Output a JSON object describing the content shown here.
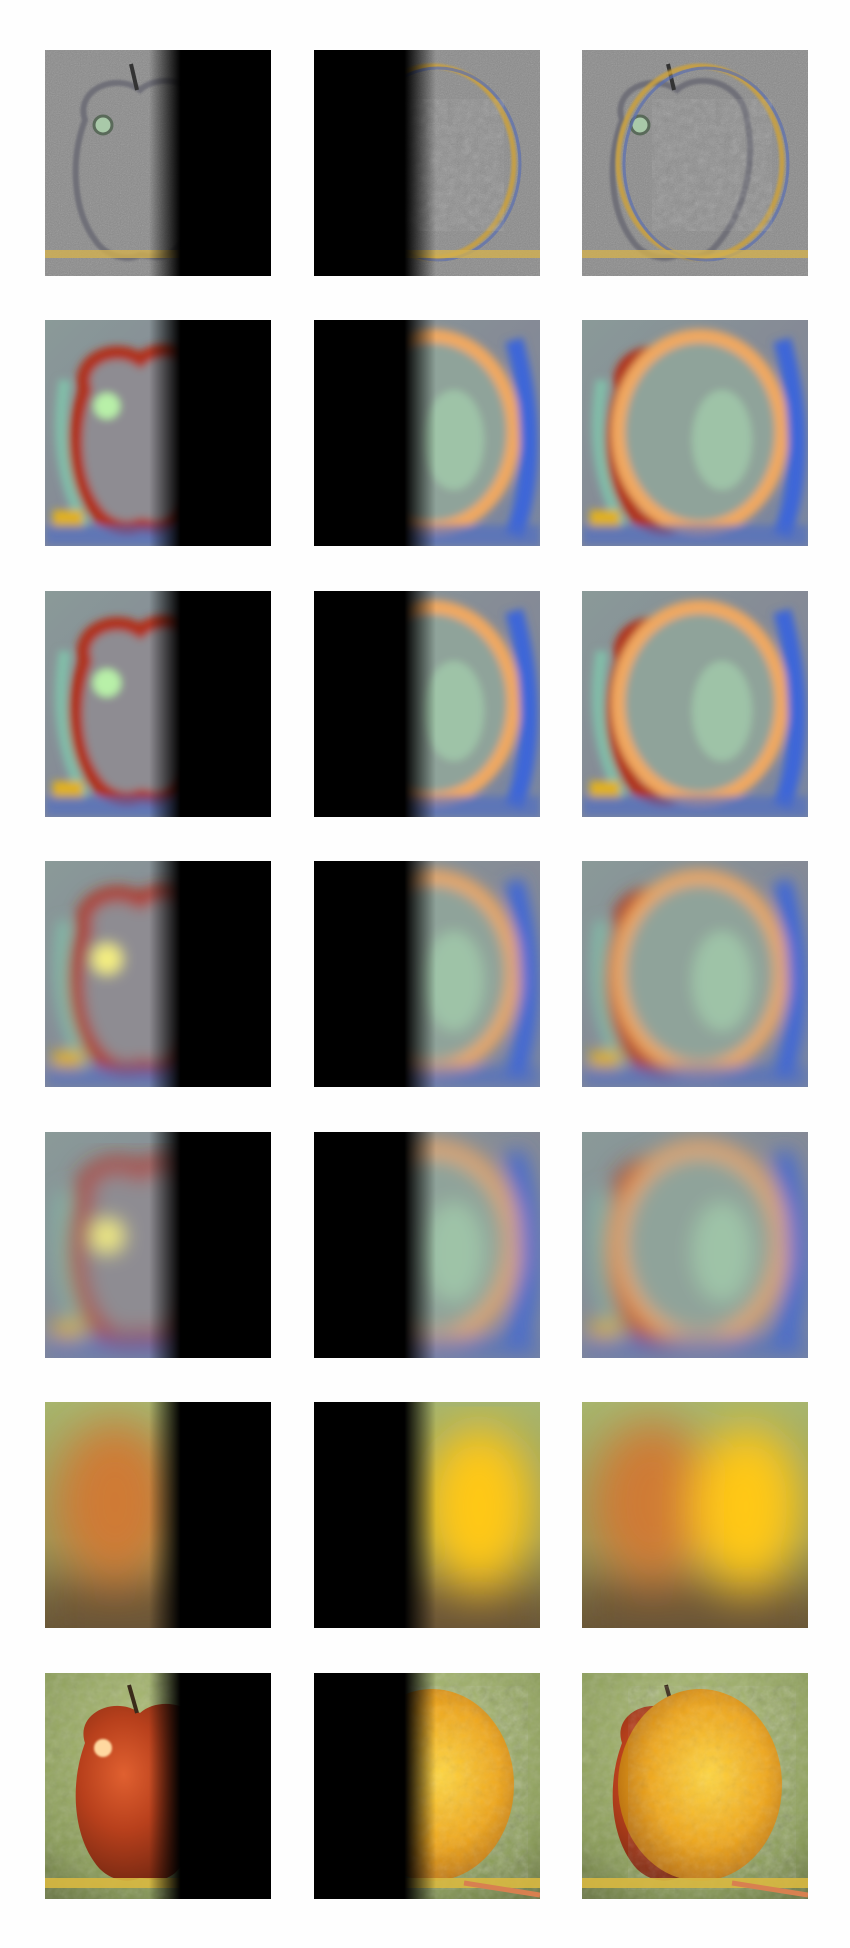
{
  "figure": {
    "description_colors": {
      "laplacian_bg": "#8a8a8a",
      "apple_red": "#b0331a",
      "apple_highlight": "#b8f0a8",
      "orange_yellow": "#f0b21e",
      "band_blue": "#3d66d8",
      "background_green": "#9db56a",
      "mask_black": "#000000"
    },
    "columns": [
      "apple-half",
      "orange-half",
      "blended"
    ],
    "rows": [
      {
        "level": "laplacian-0",
        "style": "detail"
      },
      {
        "level": "laplacian-1",
        "style": "band"
      },
      {
        "level": "laplacian-2",
        "style": "band"
      },
      {
        "level": "laplacian-3",
        "style": "band"
      },
      {
        "level": "laplacian-4",
        "style": "band"
      },
      {
        "level": "gaussian-top",
        "style": "blur"
      },
      {
        "level": "reconstruction",
        "style": "full"
      }
    ]
  }
}
